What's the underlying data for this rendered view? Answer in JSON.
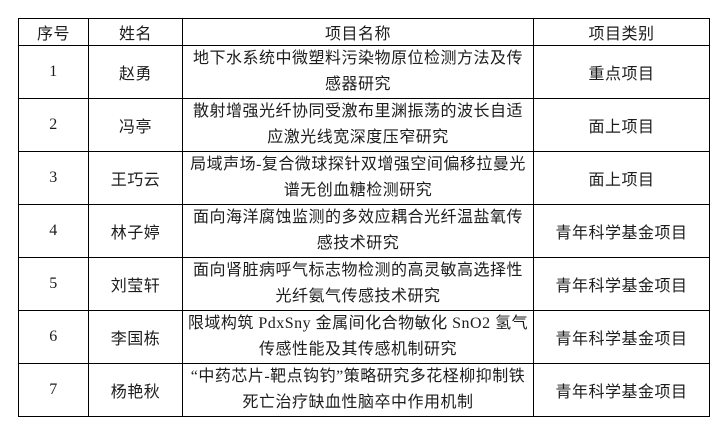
{
  "table": {
    "headers": {
      "no": "序号",
      "name": "姓名",
      "project": "项目名称",
      "category": "项目类别"
    },
    "rows": [
      {
        "no": "1",
        "name": "赵勇",
        "project": "地下水系统中微塑料污染物原位检测方法及传感器研究",
        "category": "重点项目"
      },
      {
        "no": "2",
        "name": "冯亭",
        "project": "散射增强光纤协同受激布里渊振荡的波长自适应激光线宽深度压窄研究",
        "category": "面上项目"
      },
      {
        "no": "3",
        "name": "王巧云",
        "project": "局域声场-复合微球探针双增强空间偏移拉曼光谱无创血糖检测研究",
        "category": "面上项目"
      },
      {
        "no": "4",
        "name": "林子婷",
        "project": "面向海洋腐蚀监测的多效应耦合光纤温盐氧传感技术研究",
        "category": "青年科学基金项目"
      },
      {
        "no": "5",
        "name": "刘莹轩",
        "project": "面向肾脏病呼气标志物检测的高灵敏高选择性光纤氨气传感技术研究",
        "category": "青年科学基金项目"
      },
      {
        "no": "6",
        "name": "李国栋",
        "project": "限域构筑 PdxSny 金属间化合物敏化 SnO2 氢气传感性能及其传感机制研究",
        "category": "青年科学基金项目"
      },
      {
        "no": "7",
        "name": "杨艳秋",
        "project": "“中药芯片-靶点钩钓”策略研究多花柽柳抑制铁死亡治疗缺血性脑卒中作用机制",
        "category": "青年科学基金项目"
      }
    ],
    "colors": {
      "border": "#000000",
      "text": "#1c1c1c",
      "background": "#ffffff"
    }
  }
}
